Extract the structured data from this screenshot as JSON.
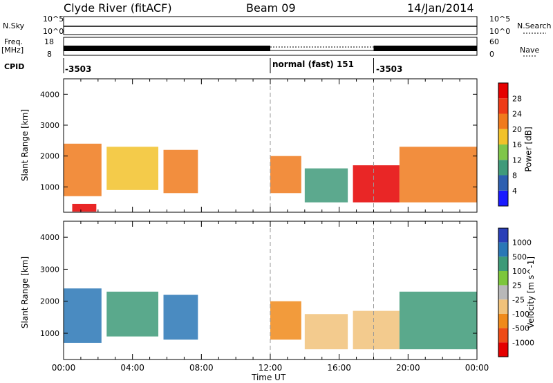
{
  "header": {
    "station": "Clyde River (fitACF)",
    "beam": "Beam 09",
    "date": "14/Jan/2014"
  },
  "strips": {
    "nsky_label": "N.Sky",
    "nsky_tick_top": "10^5",
    "nsky_tick_bottom": "10^0",
    "nsearch_tick_top": "10^5",
    "nsearch_tick_bottom": "10^0",
    "nsearch_label": "N.Search",
    "freq_label": "Freq.",
    "freq_unit": "[MHz]",
    "freq_tick_top": "18",
    "freq_tick_bottom": "8",
    "nave_tick_top": "60",
    "nave_tick_bottom": "0",
    "nave_label": "Nave",
    "cpid_label": "CPID",
    "cpid_segments": [
      {
        "label": "-3503",
        "start_hour": 0,
        "end_hour": 12
      },
      {
        "label": "normal (fast) 151",
        "start_hour": 12,
        "end_hour": 18
      },
      {
        "label": "-3503",
        "start_hour": 18,
        "end_hour": 24
      }
    ]
  },
  "chart_data": [
    {
      "type": "heatmap",
      "title": "Power",
      "xlabel": "Time UT",
      "ylabel": "Slant Range [km]",
      "xlim": [
        0,
        24
      ],
      "ylim": [
        180,
        4500
      ],
      "x_tick_labels": [
        "00:00",
        "04:00",
        "08:00",
        "12:00",
        "16:00",
        "20:00",
        "00:00"
      ],
      "x_tick_hours": [
        0,
        4,
        8,
        12,
        16,
        20,
        24
      ],
      "y_tick_values": [
        1000,
        2000,
        3000,
        4000
      ],
      "colorbar": {
        "label": "Power [dB]",
        "tick_labels": [
          "4",
          "8",
          "12",
          "16",
          "20",
          "24",
          "28"
        ],
        "range": [
          0,
          32
        ],
        "colors": [
          "#1a1aff",
          "#2d5fb0",
          "#3f9a7a",
          "#7fc64a",
          "#f2c22a",
          "#f07a1c",
          "#ee3b17",
          "#e50000"
        ]
      },
      "regions": [
        {
          "start_hour": 0.0,
          "end_hour": 2.2,
          "range_min": 700,
          "range_max": 2400,
          "level": 22
        },
        {
          "start_hour": 0.5,
          "end_hour": 1.9,
          "range_min": 200,
          "range_max": 450,
          "level": 28
        },
        {
          "start_hour": 2.5,
          "end_hour": 5.5,
          "range_min": 900,
          "range_max": 2300,
          "level": 18
        },
        {
          "start_hour": 5.8,
          "end_hour": 7.8,
          "range_min": 800,
          "range_max": 2200,
          "level": 22
        },
        {
          "start_hour": 12.0,
          "end_hour": 13.8,
          "range_min": 800,
          "range_max": 2000,
          "level": 22
        },
        {
          "start_hour": 14.0,
          "end_hour": 16.5,
          "range_min": 500,
          "range_max": 1600,
          "level": 10
        },
        {
          "start_hour": 16.8,
          "end_hour": 19.5,
          "range_min": 500,
          "range_max": 1700,
          "level": 28
        },
        {
          "start_hour": 19.5,
          "end_hour": 24.0,
          "range_min": 500,
          "range_max": 2300,
          "level": 22
        }
      ]
    },
    {
      "type": "heatmap",
      "title": "Velocity",
      "xlabel": "Time UT",
      "ylabel": "Slant Range [km]",
      "xlim": [
        0,
        24
      ],
      "ylim": [
        180,
        4500
      ],
      "x_tick_labels": [
        "00:00",
        "04:00",
        "08:00",
        "12:00",
        "16:00",
        "20:00",
        "00:00"
      ],
      "x_tick_hours": [
        0,
        4,
        8,
        12,
        16,
        20,
        24
      ],
      "y_tick_values": [
        1000,
        2000,
        3000,
        4000
      ],
      "colorbar": {
        "label": "Velocity [m s^-1]",
        "tick_labels": [
          "1000",
          "500",
          "100",
          "25",
          "-25",
          "-100",
          "-500",
          "-1000"
        ],
        "colors": [
          "#2a3fb8",
          "#2a77b6",
          "#3d9a78",
          "#7cc63b",
          "#b8b8b8",
          "#f1c27a",
          "#f08a1a",
          "#ee4b16",
          "#e50000"
        ]
      },
      "regions": [
        {
          "start_hour": 0.0,
          "end_hour": 2.2,
          "range_min": 700,
          "range_max": 2400,
          "velocity": 500
        },
        {
          "start_hour": 2.5,
          "end_hour": 5.5,
          "range_min": 900,
          "range_max": 2300,
          "velocity": 100
        },
        {
          "start_hour": 5.8,
          "end_hour": 7.8,
          "range_min": 800,
          "range_max": 2200,
          "velocity": 500
        },
        {
          "start_hour": 12.0,
          "end_hour": 13.8,
          "range_min": 800,
          "range_max": 2000,
          "velocity": -500
        },
        {
          "start_hour": 14.0,
          "end_hour": 16.5,
          "range_min": 500,
          "range_max": 1600,
          "velocity": -100
        },
        {
          "start_hour": 16.8,
          "end_hour": 19.5,
          "range_min": 500,
          "range_max": 1700,
          "velocity": -100
        },
        {
          "start_hour": 19.5,
          "end_hour": 24.0,
          "range_min": 500,
          "range_max": 2300,
          "velocity": 100
        }
      ]
    }
  ]
}
